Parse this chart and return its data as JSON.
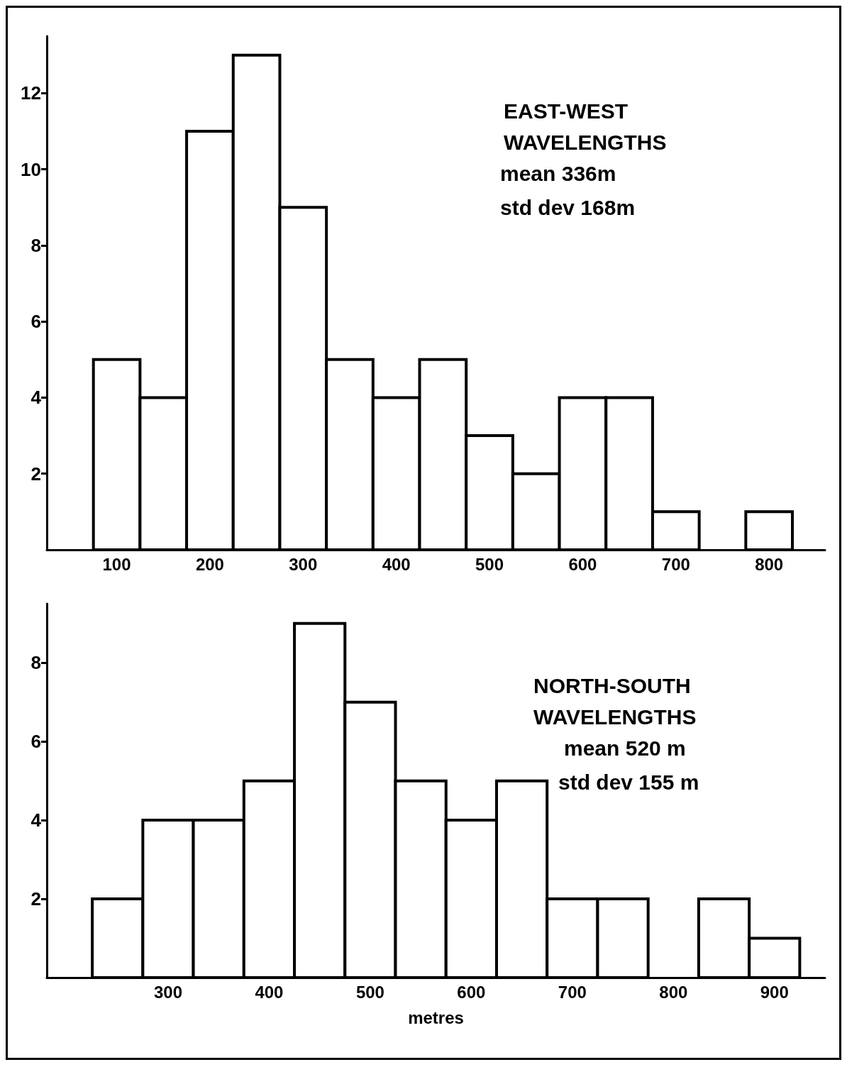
{
  "chart_data": [
    {
      "type": "histogram",
      "title": "EAST-WEST WAVELENGTHS",
      "annotations": [
        "mean 336m",
        "std dev 168m"
      ],
      "bins": [
        75,
        125,
        175,
        225,
        275,
        325,
        375,
        425,
        475,
        525,
        575,
        625,
        675,
        725,
        775,
        825
      ],
      "values": [
        5,
        4,
        11,
        13,
        9,
        5,
        4,
        5,
        3,
        2,
        4,
        4,
        1,
        0,
        1
      ],
      "color": "#ffffff",
      "xlim": [
        25,
        860
      ],
      "xticks": [
        100,
        200,
        300,
        400,
        500,
        600,
        700,
        800
      ],
      "ylim": [
        0,
        13.5
      ],
      "yticks": [
        2,
        4,
        6,
        8,
        10,
        12
      ]
    },
    {
      "type": "histogram",
      "title": "NORTH-SOUTH WAVELENGTHS",
      "annotations": [
        "mean 520 m",
        "std dev 155 m"
      ],
      "xlabel": "metres",
      "bins": [
        225,
        275,
        325,
        375,
        425,
        475,
        525,
        575,
        625,
        675,
        725,
        775,
        825,
        875,
        925
      ],
      "values": [
        2,
        4,
        4,
        5,
        9,
        7,
        5,
        4,
        5,
        2,
        2,
        0,
        2,
        1
      ],
      "color": "#ffffff",
      "xlim": [
        180,
        950
      ],
      "xticks": [
        300,
        400,
        500,
        600,
        700,
        800,
        900
      ],
      "ylim": [
        0,
        9.5
      ],
      "yticks": [
        2,
        4,
        6,
        8
      ]
    }
  ]
}
